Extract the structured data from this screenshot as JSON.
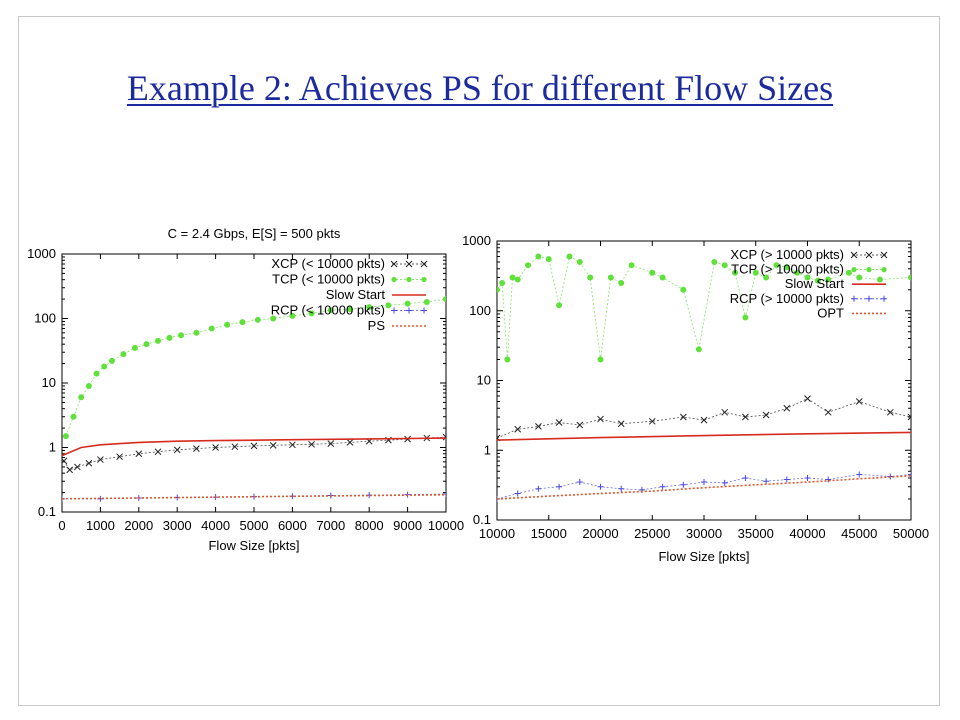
{
  "slide": {
    "title": "Example 2: Achieves PS for different Flow Sizes"
  },
  "chart_data": [
    {
      "type": "scatter",
      "title": "C = 2.4 Gbps, E[S] = 500 pkts",
      "xlabel": "Flow Size [pkts]",
      "ylabel": "",
      "xlim": [
        0,
        10000
      ],
      "ylim": [
        0.1,
        1000
      ],
      "yscale": "log",
      "x_ticks": [
        "0",
        "1000",
        "2000",
        "3000",
        "4000",
        "5000",
        "6000",
        "7000",
        "8000",
        "9000",
        "10000"
      ],
      "y_ticks": [
        "0.1",
        "1",
        "10",
        "100",
        "1000"
      ],
      "legend_position": "top-right",
      "series": [
        {
          "name": "XCP (< 10000 pkts)",
          "color": "#222222",
          "marker": "x",
          "points": [
            [
              50,
              0.62
            ],
            [
              200,
              0.45
            ],
            [
              400,
              0.5
            ],
            [
              700,
              0.57
            ],
            [
              1000,
              0.65
            ],
            [
              1500,
              0.72
            ],
            [
              2000,
              0.8
            ],
            [
              2500,
              0.86
            ],
            [
              3000,
              0.92
            ],
            [
              3500,
              0.96
            ],
            [
              4000,
              1.0
            ],
            [
              4500,
              1.03
            ],
            [
              5000,
              1.06
            ],
            [
              5500,
              1.08
            ],
            [
              6000,
              1.1
            ],
            [
              6500,
              1.12
            ],
            [
              7000,
              1.15
            ],
            [
              7500,
              1.2
            ],
            [
              8000,
              1.25
            ],
            [
              8500,
              1.3
            ],
            [
              9000,
              1.35
            ],
            [
              9500,
              1.4
            ],
            [
              10000,
              1.45
            ]
          ]
        },
        {
          "name": "TCP (< 10000 pkts)",
          "color": "#5fe03a",
          "marker": "dot",
          "points": [
            [
              100,
              1.5
            ],
            [
              300,
              3
            ],
            [
              500,
              6
            ],
            [
              700,
              9
            ],
            [
              900,
              14
            ],
            [
              1100,
              18
            ],
            [
              1300,
              22
            ],
            [
              1600,
              28
            ],
            [
              1900,
              35
            ],
            [
              2200,
              40
            ],
            [
              2500,
              45
            ],
            [
              2800,
              50
            ],
            [
              3100,
              55
            ],
            [
              3500,
              60
            ],
            [
              3900,
              70
            ],
            [
              4300,
              80
            ],
            [
              4700,
              88
            ],
            [
              5100,
              95
            ],
            [
              5500,
              100
            ],
            [
              6000,
              110
            ],
            [
              6500,
              120
            ],
            [
              7000,
              135
            ],
            [
              7500,
              140
            ],
            [
              8000,
              150
            ],
            [
              8500,
              160
            ],
            [
              9000,
              170
            ],
            [
              9500,
              180
            ],
            [
              10000,
              200
            ]
          ]
        },
        {
          "name": "Slow Start",
          "color": "#d62b1e",
          "marker": "line",
          "points": [
            [
              0,
              0.75
            ],
            [
              500,
              1.0
            ],
            [
              1000,
              1.1
            ],
            [
              2000,
              1.2
            ],
            [
              3000,
              1.25
            ],
            [
              4000,
              1.28
            ],
            [
              5000,
              1.3
            ],
            [
              6000,
              1.32
            ],
            [
              7000,
              1.34
            ],
            [
              8000,
              1.36
            ],
            [
              9000,
              1.38
            ],
            [
              10000,
              1.4
            ]
          ]
        },
        {
          "name": "RCP (< 10000 pkts)",
          "color": "#4a4ae0",
          "marker": "plus",
          "points": [
            [
              0,
              0.16
            ],
            [
              1000,
              0.16
            ],
            [
              2000,
              0.165
            ],
            [
              3000,
              0.168
            ],
            [
              4000,
              0.17
            ],
            [
              5000,
              0.173
            ],
            [
              6000,
              0.176
            ],
            [
              7000,
              0.18
            ],
            [
              8000,
              0.183
            ],
            [
              9000,
              0.186
            ],
            [
              10000,
              0.19
            ]
          ]
        },
        {
          "name": "PS",
          "color": "#e0562a",
          "marker": "dotted",
          "points": [
            [
              0,
              0.16
            ],
            [
              2000,
              0.165
            ],
            [
              4000,
              0.17
            ],
            [
              6000,
              0.175
            ],
            [
              8000,
              0.18
            ],
            [
              10000,
              0.185
            ]
          ]
        }
      ]
    },
    {
      "type": "scatter",
      "title": "",
      "xlabel": "Flow Size [pkts]",
      "ylabel": "",
      "xlim": [
        10000,
        50000
      ],
      "ylim": [
        0.1,
        1000
      ],
      "yscale": "log",
      "x_ticks": [
        "10000",
        "15000",
        "20000",
        "25000",
        "30000",
        "35000",
        "40000",
        "45000",
        "50000"
      ],
      "y_ticks": [
        "0.1",
        "1",
        "10",
        "100",
        "1000"
      ],
      "legend_position": "top-right",
      "series": [
        {
          "name": "XCP (> 10000 pkts)",
          "color": "#222222",
          "marker": "x",
          "points": [
            [
              10000,
              1.5
            ],
            [
              12000,
              2.0
            ],
            [
              14000,
              2.2
            ],
            [
              16000,
              2.5
            ],
            [
              18000,
              2.3
            ],
            [
              20000,
              2.8
            ],
            [
              22000,
              2.4
            ],
            [
              25000,
              2.6
            ],
            [
              28000,
              3.0
            ],
            [
              30000,
              2.7
            ],
            [
              32000,
              3.5
            ],
            [
              34000,
              3.0
            ],
            [
              36000,
              3.2
            ],
            [
              38000,
              4.0
            ],
            [
              40000,
              5.5
            ],
            [
              42000,
              3.5
            ],
            [
              45000,
              5.0
            ],
            [
              48000,
              3.5
            ],
            [
              50000,
              3.0
            ]
          ]
        },
        {
          "name": "TCP (> 10000 pkts)",
          "color": "#5fe03a",
          "marker": "dot",
          "points": [
            [
              10000,
              200
            ],
            [
              10500,
              250
            ],
            [
              11000,
              20
            ],
            [
              11500,
              300
            ],
            [
              12000,
              280
            ],
            [
              13000,
              450
            ],
            [
              14000,
              600
            ],
            [
              15000,
              550
            ],
            [
              16000,
              120
            ],
            [
              17000,
              600
            ],
            [
              18000,
              500
            ],
            [
              19000,
              300
            ],
            [
              20000,
              20
            ],
            [
              21000,
              300
            ],
            [
              22000,
              250
            ],
            [
              23000,
              450
            ],
            [
              25000,
              350
            ],
            [
              26000,
              300
            ],
            [
              28000,
              200
            ],
            [
              29500,
              28
            ],
            [
              31000,
              500
            ],
            [
              32000,
              450
            ],
            [
              33000,
              350
            ],
            [
              34000,
              80
            ],
            [
              35000,
              350
            ],
            [
              36000,
              300
            ],
            [
              37000,
              450
            ],
            [
              38000,
              420
            ],
            [
              39000,
              350
            ],
            [
              40000,
              300
            ],
            [
              41000,
              270
            ],
            [
              42000,
              280
            ],
            [
              44000,
              350
            ],
            [
              45000,
              300
            ],
            [
              47000,
              280
            ],
            [
              50000,
              300
            ]
          ]
        },
        {
          "name": "Slow Start",
          "color": "#d62b1e",
          "marker": "line",
          "points": [
            [
              10000,
              1.4
            ],
            [
              20000,
              1.52
            ],
            [
              30000,
              1.62
            ],
            [
              40000,
              1.72
            ],
            [
              50000,
              1.8
            ]
          ]
        },
        {
          "name": "RCP (> 10000 pkts)",
          "color": "#4a4ae0",
          "marker": "plus",
          "points": [
            [
              10000,
              0.2
            ],
            [
              12000,
              0.24
            ],
            [
              14000,
              0.28
            ],
            [
              16000,
              0.3
            ],
            [
              18000,
              0.35
            ],
            [
              20000,
              0.3
            ],
            [
              22000,
              0.28
            ],
            [
              24000,
              0.27
            ],
            [
              26000,
              0.3
            ],
            [
              28000,
              0.32
            ],
            [
              30000,
              0.35
            ],
            [
              32000,
              0.34
            ],
            [
              34000,
              0.4
            ],
            [
              36000,
              0.36
            ],
            [
              38000,
              0.38
            ],
            [
              40000,
              0.4
            ],
            [
              42000,
              0.38
            ],
            [
              45000,
              0.45
            ],
            [
              48000,
              0.42
            ],
            [
              50000,
              0.45
            ]
          ]
        },
        {
          "name": "OPT",
          "color": "#e0562a",
          "marker": "dotted",
          "points": [
            [
              10000,
              0.2
            ],
            [
              15000,
              0.22
            ],
            [
              20000,
              0.24
            ],
            [
              25000,
              0.26
            ],
            [
              30000,
              0.29
            ],
            [
              35000,
              0.32
            ],
            [
              40000,
              0.35
            ],
            [
              45000,
              0.39
            ],
            [
              50000,
              0.43
            ]
          ]
        }
      ]
    }
  ]
}
